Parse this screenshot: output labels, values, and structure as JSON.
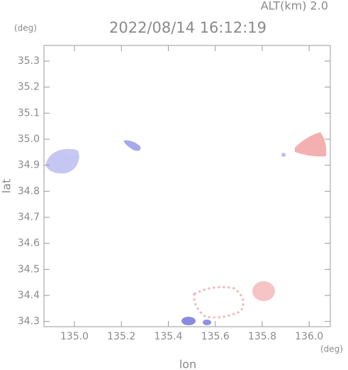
{
  "chart_data": {
    "type": "map",
    "title": "2022/08/14 16:12:19",
    "subtitle": "ALT(km) 2.0",
    "x_label": "lon",
    "y_label": "lat",
    "x_unit": "(deg)",
    "y_unit": "(deg)",
    "xlim": [
      134.87,
      136.09
    ],
    "ylim": [
      34.28,
      35.36
    ],
    "xticks": [
      {
        "value": 135,
        "label": "135.0"
      },
      135.2,
      135.4,
      135.6,
      135.8,
      {
        "value": 136,
        "label": "136.0"
      }
    ],
    "yticks": [
      34.3,
      34.4,
      34.5,
      34.6,
      34.7,
      34.8,
      34.9,
      {
        "value": 35,
        "label": "35.0"
      },
      35.1,
      35.2,
      35.3
    ]
  }
}
